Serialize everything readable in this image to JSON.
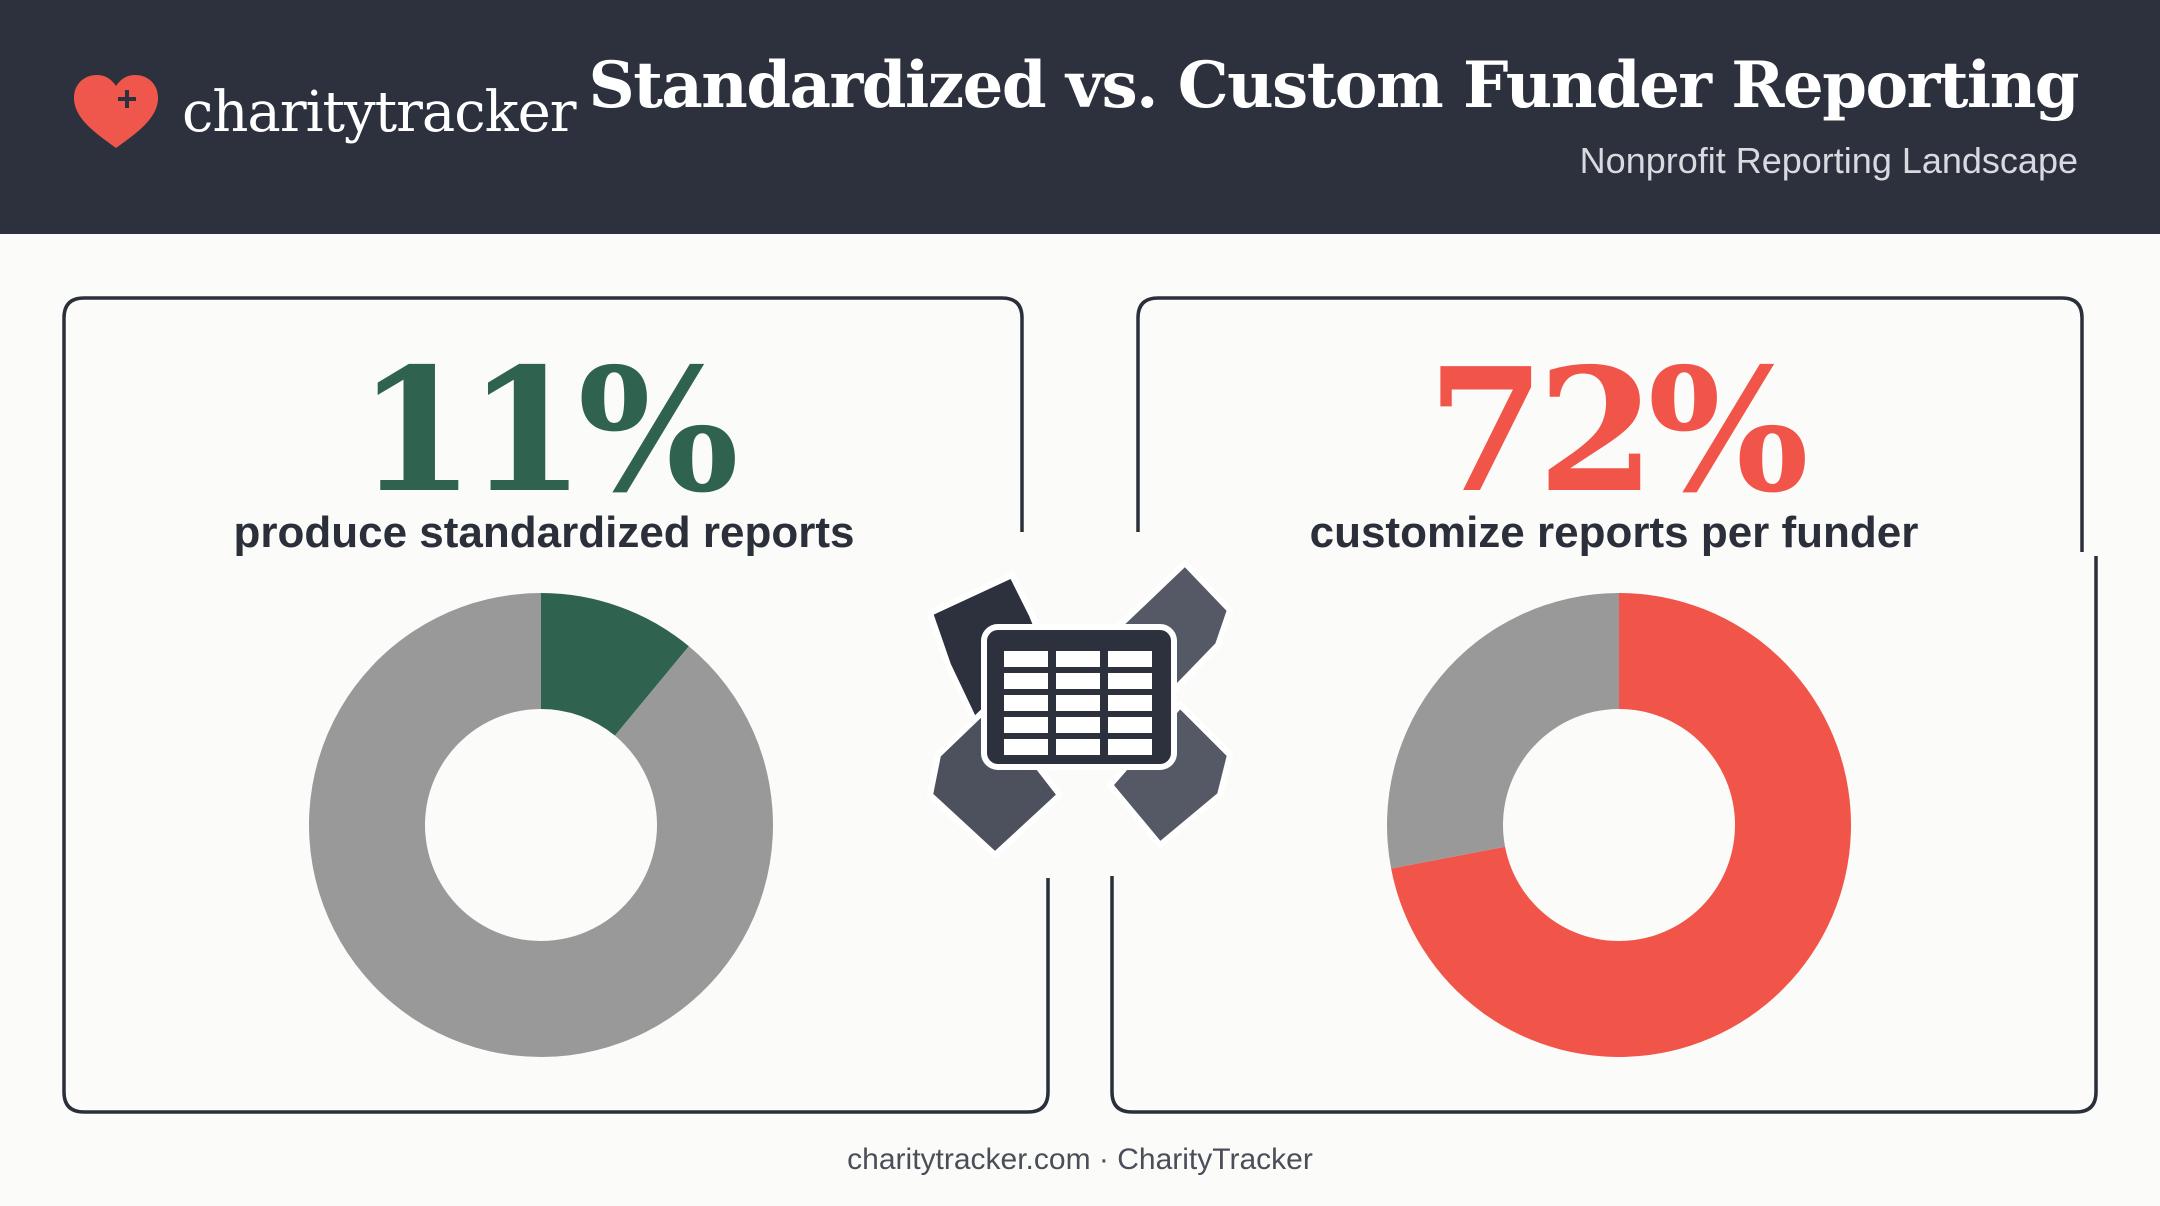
{
  "header": {
    "brand": "charitytracker",
    "title": "Standardized vs. Custom Funder Reporting",
    "subtitle": "Nonprofit Reporting Landscape"
  },
  "panels": [
    {
      "stat": "11%",
      "caption": "produce standardized reports"
    },
    {
      "stat": "72%",
      "caption": "customize reports per funder"
    }
  ],
  "footer": {
    "text": "charitytracker.com · CharityTracker"
  },
  "icons": {
    "brand": "heart-plus-icon",
    "center": "spreadsheet-documents-icon"
  },
  "colors": {
    "header_bg": "#2c313d",
    "green": "#2f6350",
    "red": "#f1554a",
    "gray": "#9a9999",
    "heart": "#f0574c"
  },
  "chart_data": [
    {
      "type": "pie",
      "variant": "donut",
      "values": [
        11,
        89
      ],
      "colors": [
        "#2f6350",
        "#9a9999"
      ],
      "title": "produce standardized reports"
    },
    {
      "type": "pie",
      "variant": "donut",
      "values": [
        72,
        28
      ],
      "colors": [
        "#f1554a",
        "#9a9999"
      ],
      "title": "customize reports per funder"
    }
  ]
}
